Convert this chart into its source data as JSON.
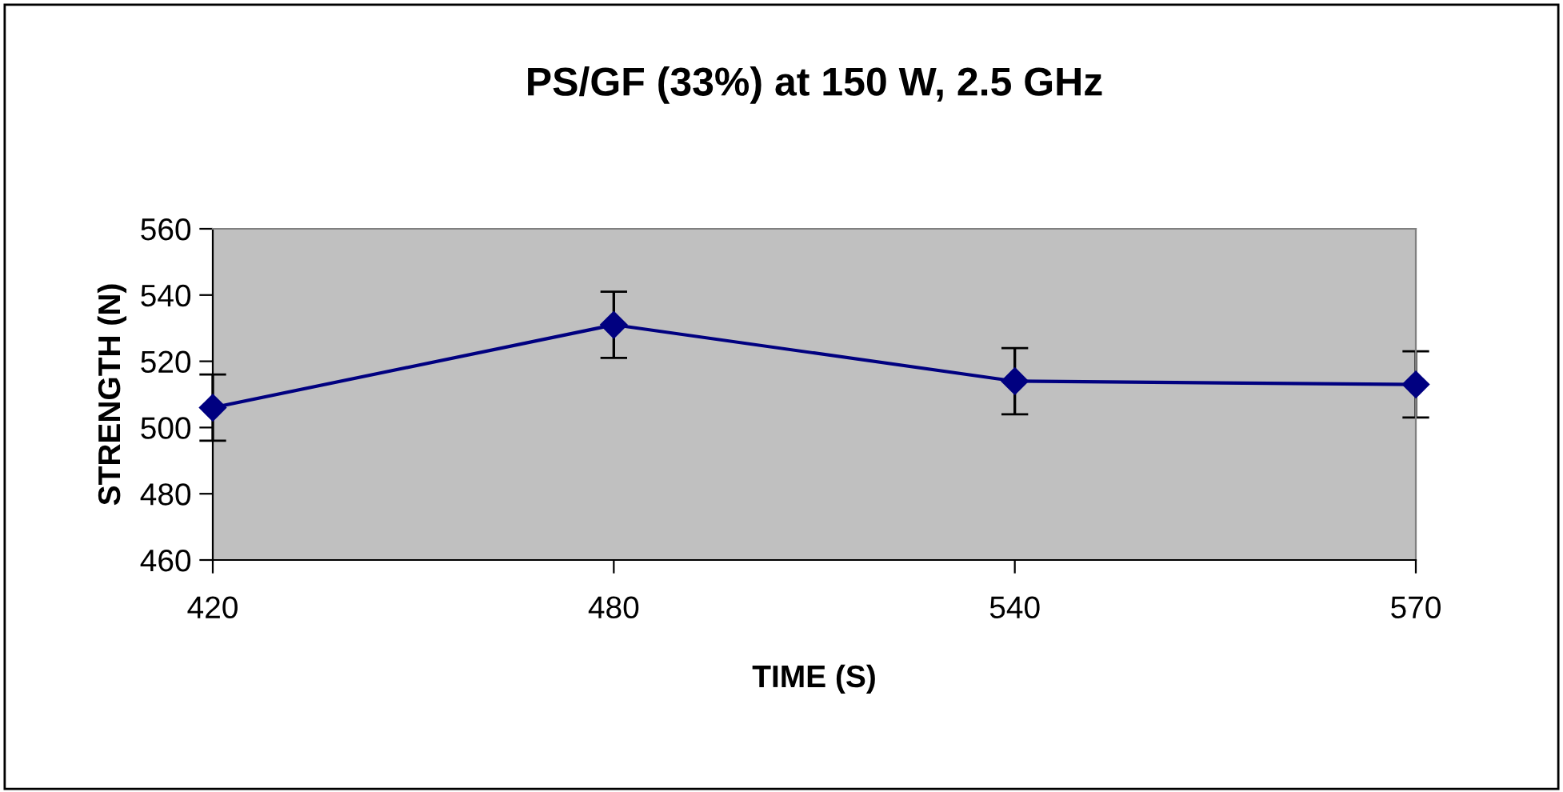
{
  "chart_data": {
    "type": "line",
    "title": "PS/GF (33%) at 150 W, 2.5 GHz",
    "xlabel": "TIME (S)",
    "ylabel": "STRENGTH (N)",
    "categories": [
      "420",
      "480",
      "540",
      "570"
    ],
    "series": [
      {
        "color": "#000080",
        "values": [
          506,
          531,
          514,
          513
        ],
        "errors": [
          10,
          10,
          10,
          10
        ]
      }
    ],
    "ylim": [
      460,
      560
    ],
    "yticks": [
      460,
      480,
      500,
      520,
      540,
      560
    ],
    "marker": "diamond",
    "line_style": "solid"
  }
}
